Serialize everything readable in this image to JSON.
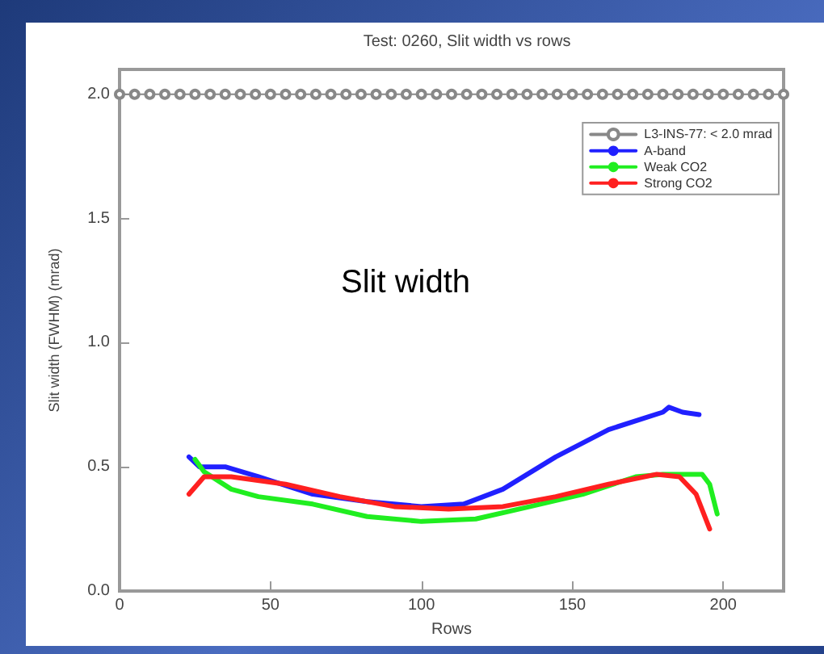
{
  "chart_data": {
    "type": "line",
    "title": "Test: 0260, Slit width vs rows",
    "xlabel": "Rows",
    "ylabel": "Slit width (FWHM) (mrad)",
    "annotations": [
      "Slit width"
    ],
    "xlim": [
      0,
      220
    ],
    "xticks": [
      0,
      50,
      100,
      150,
      200
    ],
    "ylim": [
      0,
      2.1
    ],
    "yticks": [
      {
        "value": 0,
        "label": "0.0"
      },
      {
        "value": 0.5,
        "label": "0.5"
      },
      {
        "value": 1,
        "label": "1.0"
      },
      {
        "value": 1.5,
        "label": "1.5"
      },
      {
        "value": 2,
        "label": "2.0"
      }
    ],
    "grid": false,
    "legend": "top right",
    "line_style": "solid",
    "series": [
      {
        "name": "L3-INS-77: < 2.0 mrad",
        "color": "#888888",
        "marker": "circle",
        "x": [
          0,
          5,
          10,
          15,
          20,
          25,
          30,
          35,
          40,
          45,
          50,
          55,
          60,
          65,
          70,
          75,
          80,
          85,
          90,
          95,
          100,
          105,
          110,
          115,
          120,
          125,
          130,
          135,
          140,
          145,
          150,
          155,
          160,
          165,
          170,
          175,
          180,
          185,
          190,
          195,
          200,
          205,
          210,
          215,
          220
        ],
        "values": [
          2,
          2,
          2,
          2,
          2,
          2,
          2,
          2,
          2,
          2,
          2,
          2,
          2,
          2,
          2,
          2,
          2,
          2,
          2,
          2,
          2,
          2,
          2,
          2,
          2,
          2,
          2,
          2,
          2,
          2,
          2,
          2,
          2,
          2,
          2,
          2,
          2,
          2,
          2,
          2,
          2,
          2,
          2,
          2,
          2
        ]
      },
      {
        "name": "A-band",
        "color": "#2020ff",
        "marker": "none",
        "x": [
          23,
          26.5,
          35,
          46,
          64,
          82,
          100,
          114,
          127,
          144.5,
          162,
          180,
          182,
          186.5,
          192
        ],
        "values": [
          0.54,
          0.5,
          0.5,
          0.46,
          0.39,
          0.36,
          0.34,
          0.35,
          0.41,
          0.54,
          0.65,
          0.72,
          0.74,
          0.72,
          0.71
        ]
      },
      {
        "name": "Weak CO2",
        "color": "#20ee20",
        "marker": "none",
        "x": [
          25,
          28,
          37,
          46,
          64,
          82,
          100,
          118,
          136,
          153.5,
          171,
          180,
          193,
          195.5,
          198
        ],
        "values": [
          0.53,
          0.48,
          0.41,
          0.38,
          0.35,
          0.3,
          0.28,
          0.29,
          0.34,
          0.39,
          0.46,
          0.47,
          0.47,
          0.43,
          0.31
        ]
      },
      {
        "name": "Strong CO2",
        "color": "#ff2020",
        "marker": "none",
        "x": [
          23,
          28,
          37,
          55,
          73,
          91,
          109,
          127,
          144.5,
          162,
          178,
          185.5,
          191,
          195.5
        ],
        "values": [
          0.39,
          0.46,
          0.46,
          0.43,
          0.38,
          0.34,
          0.33,
          0.34,
          0.38,
          0.43,
          0.47,
          0.46,
          0.39,
          0.25
        ]
      }
    ]
  }
}
